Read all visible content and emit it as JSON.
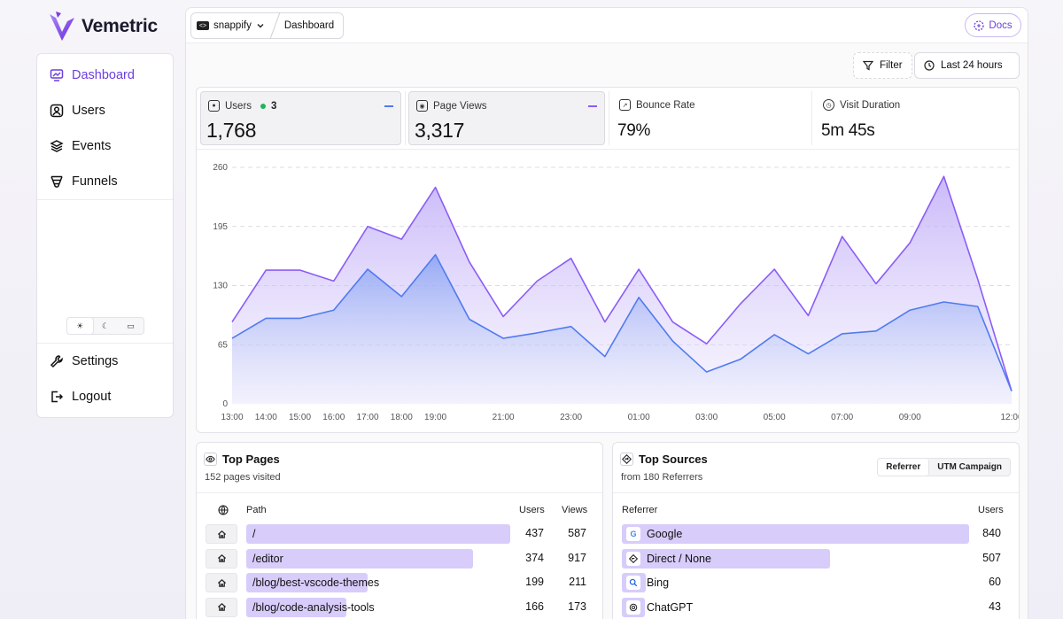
{
  "app": {
    "name": "Vemetric"
  },
  "sidebar": {
    "items": [
      {
        "label": "Dashboard"
      },
      {
        "label": "Users"
      },
      {
        "label": "Events"
      },
      {
        "label": "Funnels"
      }
    ],
    "bottom": [
      {
        "label": "Settings"
      },
      {
        "label": "Logout"
      }
    ],
    "theme_options": [
      "light",
      "dark",
      "system"
    ]
  },
  "header": {
    "project": "snappify",
    "page": "Dashboard",
    "docs": "Docs"
  },
  "toolbar": {
    "filter": "Filter",
    "range": "Last 24 hours"
  },
  "stats": [
    {
      "label": "Users",
      "value": "1,768",
      "live": "3"
    },
    {
      "label": "Page Views",
      "value": "3,317"
    },
    {
      "label": "Bounce Rate",
      "value": "79%"
    },
    {
      "label": "Visit Duration",
      "value": "5m 45s"
    }
  ],
  "chart_data": {
    "type": "area",
    "x": [
      "13:00",
      "14:00",
      "15:00",
      "16:00",
      "17:00",
      "18:00",
      "19:00",
      "20:00",
      "21:00",
      "22:00",
      "23:00",
      "00:00",
      "01:00",
      "02:00",
      "03:00",
      "04:00",
      "05:00",
      "06:00",
      "07:00",
      "08:00",
      "09:00",
      "10:00",
      "11:00",
      "12:00"
    ],
    "x_tick_labels": [
      "13:00",
      "14:00",
      "15:00",
      "16:00",
      "17:00",
      "18:00",
      "19:00",
      "21:00",
      "23:00",
      "01:00",
      "03:00",
      "05:00",
      "07:00",
      "09:00",
      "12:00"
    ],
    "y_ticks": [
      0,
      65,
      130,
      195,
      260
    ],
    "ylim": [
      0,
      260
    ],
    "grid": true,
    "series": [
      {
        "name": "Page Views",
        "color": "#8b5cf6",
        "values": [
          90,
          147,
          147,
          135,
          195,
          181,
          238,
          156,
          96,
          135,
          160,
          90,
          148,
          90,
          66,
          110,
          148,
          97,
          184,
          132,
          177,
          250,
          137,
          14
        ]
      },
      {
        "name": "Users",
        "color": "#4f7bf0",
        "values": [
          72,
          94,
          94,
          103,
          148,
          118,
          164,
          93,
          72,
          78,
          85,
          52,
          117,
          69,
          35,
          49,
          76,
          55,
          77,
          80,
          103,
          112,
          107,
          14
        ]
      }
    ]
  },
  "top_pages": {
    "title": "Top Pages",
    "subtitle": "152 pages visited",
    "headers": {
      "path": "Path",
      "users": "Users",
      "views": "Views"
    },
    "rows": [
      {
        "path": "/",
        "users": "437",
        "views": "587",
        "share": 1.0
      },
      {
        "path": "/editor",
        "users": "374",
        "views": "917",
        "share": 0.86
      },
      {
        "path": "/blog/best-vscode-themes",
        "users": "199",
        "views": "211",
        "share": 0.46
      },
      {
        "path": "/blog/code-analysis-tools",
        "users": "166",
        "views": "173",
        "share": 0.38
      }
    ]
  },
  "top_sources": {
    "title": "Top Sources",
    "subtitle": "from 180 Referrers",
    "tabs": [
      "Referrer",
      "UTM Campaign"
    ],
    "headers": {
      "referrer": "Referrer",
      "users": "Users"
    },
    "rows": [
      {
        "name": "Google",
        "users": "840",
        "share": 1.0,
        "icon": "google-icon"
      },
      {
        "name": "Direct / None",
        "users": "507",
        "share": 0.6,
        "icon": "direct-icon"
      },
      {
        "name": "Bing",
        "users": "60",
        "share": 0.07,
        "icon": "bing-icon"
      },
      {
        "name": "ChatGPT",
        "users": "43",
        "share": 0.05,
        "icon": "chatgpt-icon"
      }
    ]
  }
}
